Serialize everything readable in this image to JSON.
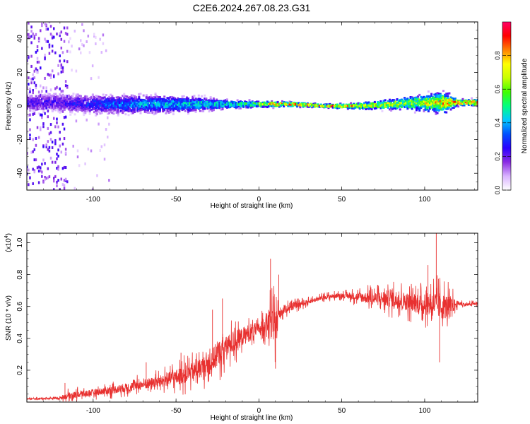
{
  "chart_data": [
    {
      "type": "heatmap",
      "title": "C2E6.2024.267.08.23.G31",
      "xlabel": "Height of straight line (km)",
      "ylabel": "Frequency (Hz)",
      "xlim": [
        -140,
        132
      ],
      "ylim": [
        -50,
        50
      ],
      "xticks": [
        -100,
        -50,
        0,
        50,
        100
      ],
      "yticks": [
        -40,
        -20,
        0,
        20,
        40
      ],
      "grid": false,
      "colorbar": {
        "label": "Normalized spectral amplitude",
        "range": [
          0,
          1
        ],
        "ticks": [
          "0.0",
          "0.2",
          "0.4",
          "0.6",
          "0.8"
        ],
        "colormap": [
          "#ffffff",
          "#d9b3ff",
          "#8a2be2",
          "#2a00ff",
          "#0050ff",
          "#00c8ff",
          "#00ff80",
          "#40ff00",
          "#c8ff00",
          "#ffff00",
          "#ff8000",
          "#ff0000",
          "#ff0066"
        ]
      },
      "band_center_hz": [
        {
          "x": -120,
          "f": 2
        },
        {
          "x": -100,
          "f": 1
        },
        {
          "x": -80,
          "f": 1
        },
        {
          "x": -60,
          "f": 1
        },
        {
          "x": -40,
          "f": 1
        },
        {
          "x": -20,
          "f": 1
        },
        {
          "x": 0,
          "f": 1
        },
        {
          "x": 20,
          "f": 1
        },
        {
          "x": 40,
          "f": 0
        },
        {
          "x": 60,
          "f": 0
        },
        {
          "x": 80,
          "f": 1
        },
        {
          "x": 100,
          "f": 2
        },
        {
          "x": 115,
          "f": 2
        },
        {
          "x": 132,
          "f": 2
        }
      ],
      "band_halfwidth_hz": [
        {
          "x": -120,
          "w": 6
        },
        {
          "x": -80,
          "w": 6
        },
        {
          "x": -40,
          "w": 5
        },
        {
          "x": -20,
          "w": 3
        },
        {
          "x": 0,
          "w": 2
        },
        {
          "x": 40,
          "w": 1
        },
        {
          "x": 60,
          "w": 2
        },
        {
          "x": 90,
          "w": 4
        },
        {
          "x": 112,
          "w": 7
        },
        {
          "x": 120,
          "w": 2
        },
        {
          "x": 132,
          "w": 2
        }
      ],
      "band_peak_amplitude": [
        {
          "x": -120,
          "a": 0.25
        },
        {
          "x": -80,
          "a": 0.4
        },
        {
          "x": -40,
          "a": 0.5
        },
        {
          "x": -10,
          "a": 0.55
        },
        {
          "x": 10,
          "a": 0.85
        },
        {
          "x": 40,
          "a": 0.95
        },
        {
          "x": 60,
          "a": 0.8
        },
        {
          "x": 90,
          "a": 0.7
        },
        {
          "x": 120,
          "a": 0.9
        },
        {
          "x": 132,
          "a": 0.95
        }
      ],
      "scatter_region": {
        "x_from": -140,
        "x_to": -115,
        "f_spread": 50,
        "level": 0.25
      }
    },
    {
      "type": "line",
      "xlabel": "Height of straight line (km)",
      "ylabel": "SNR (10 * v/v)",
      "multiplier_label": "(x10",
      "multiplier_exp": "4",
      "multiplier_close": ")",
      "xlim": [
        -140,
        132
      ],
      "ylim": [
        0,
        1.06
      ],
      "xticks": [
        -100,
        -50,
        0,
        50,
        100
      ],
      "yticks": [
        "0.2",
        "0.4",
        "0.6",
        "0.8",
        "1.0"
      ],
      "color": "#e8302f",
      "series": [
        {
          "x": [
            -140,
            -120,
            -115,
            -100,
            -80,
            -60,
            -45,
            -38,
            -30,
            -25,
            -20,
            -15,
            -10,
            -5,
            0,
            5,
            8,
            10,
            12,
            15,
            20,
            30,
            40,
            50,
            60,
            70,
            80,
            90,
            100,
            105,
            110,
            115,
            120,
            125,
            132
          ],
          "y": [
            0.02,
            0.025,
            0.04,
            0.06,
            0.09,
            0.13,
            0.17,
            0.2,
            0.24,
            0.3,
            0.34,
            0.38,
            0.41,
            0.44,
            0.46,
            0.5,
            0.5,
            0.48,
            0.55,
            0.58,
            0.6,
            0.63,
            0.66,
            0.67,
            0.66,
            0.65,
            0.65,
            0.63,
            0.61,
            0.62,
            0.6,
            0.6,
            0.62,
            0.61,
            0.62
          ],
          "noise": [
            0.005,
            0.01,
            0.03,
            0.03,
            0.04,
            0.05,
            0.08,
            0.08,
            0.1,
            0.12,
            0.1,
            0.1,
            0.08,
            0.08,
            0.05,
            0.1,
            0.15,
            0.15,
            0.06,
            0.04,
            0.03,
            0.02,
            0.02,
            0.02,
            0.04,
            0.06,
            0.08,
            0.08,
            0.09,
            0.12,
            0.12,
            0.1,
            0.02,
            0.015,
            0.015
          ]
        }
      ],
      "spikes": [
        {
          "x": -117,
          "y": 0.12
        },
        {
          "x": -68,
          "y": 0.25
        },
        {
          "x": -47,
          "y": 0.31
        },
        {
          "x": -28,
          "y": 0.58
        },
        {
          "x": -22,
          "y": 0.65
        },
        {
          "x": 7,
          "y": 0.9
        },
        {
          "x": 10,
          "y": 0.21
        },
        {
          "x": 12,
          "y": 0.8
        },
        {
          "x": 102,
          "y": 0.86
        },
        {
          "x": 107,
          "y": 1.06
        },
        {
          "x": 109,
          "y": 0.25
        }
      ]
    }
  ]
}
